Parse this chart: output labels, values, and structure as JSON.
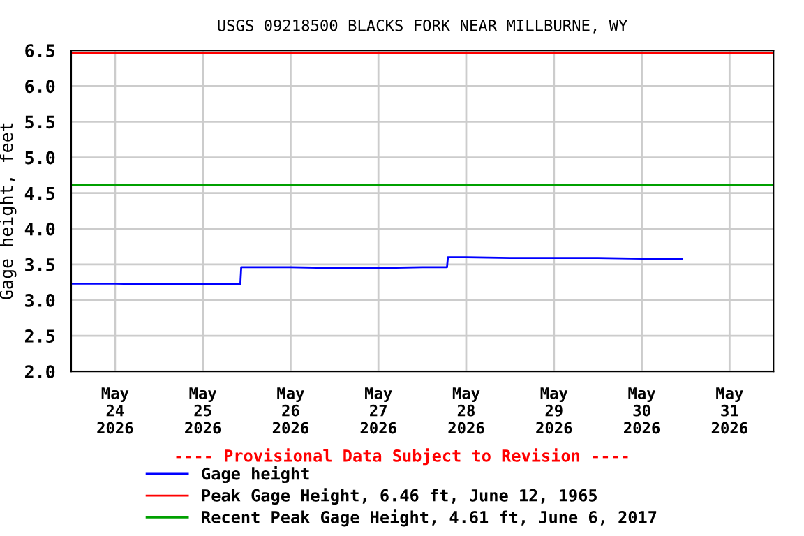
{
  "chart_data": {
    "type": "line",
    "title": "USGS 09218500 BLACKS FORK NEAR MILLBURNE, WY",
    "ylabel": "Gage height, feet",
    "series": [
      {
        "name": "Gage height",
        "color": "#0000ff",
        "x": [
          "2026-05-23T12:00",
          "2026-05-24T00:00",
          "2026-05-24T12:00",
          "2026-05-25T00:00",
          "2026-05-25T10:00",
          "2026-05-25T10:15",
          "2026-05-25T10:30",
          "2026-05-26T00:00",
          "2026-05-26T12:00",
          "2026-05-27T00:00",
          "2026-05-27T12:00",
          "2026-05-27T18:45",
          "2026-05-27T19:00",
          "2026-05-28T00:00",
          "2026-05-28T12:00",
          "2026-05-29T00:00",
          "2026-05-29T12:00",
          "2026-05-30T00:00",
          "2026-05-30T11:00"
        ],
        "values": [
          3.23,
          3.23,
          3.22,
          3.22,
          3.23,
          3.22,
          3.46,
          3.46,
          3.45,
          3.45,
          3.46,
          3.46,
          3.6,
          3.6,
          3.59,
          3.59,
          3.59,
          3.58,
          3.58
        ]
      }
    ],
    "ref_lines": [
      {
        "axis": "y",
        "value": 6.46,
        "label": "Peak Gage Height, 6.46 ft, June 12, 1965",
        "color": "#ff0000"
      },
      {
        "axis": "y",
        "value": 4.61,
        "label": "Recent Peak Gage Height, 4.61 ft, June 6, 2017",
        "color": "#00a000"
      }
    ],
    "annotations": [
      "---- Provisional Data Subject to Revision ----"
    ],
    "xlim": [
      "2026-05-23T12:00",
      "2026-05-31T12:00"
    ],
    "xticks": [
      {
        "value": "2026-05-24T00:00",
        "label": "May\n24\n2026"
      },
      {
        "value": "2026-05-25T00:00",
        "label": "May\n25\n2026"
      },
      {
        "value": "2026-05-26T00:00",
        "label": "May\n26\n2026"
      },
      {
        "value": "2026-05-27T00:00",
        "label": "May\n27\n2026"
      },
      {
        "value": "2026-05-28T00:00",
        "label": "May\n28\n2026"
      },
      {
        "value": "2026-05-29T00:00",
        "label": "May\n29\n2026"
      },
      {
        "value": "2026-05-30T00:00",
        "label": "May\n30\n2026"
      },
      {
        "value": "2026-05-31T00:00",
        "label": "May\n31\n2026"
      }
    ],
    "ylim": [
      2.0,
      6.5
    ],
    "yticks": [
      {
        "value": 2.0,
        "label": "2.0"
      },
      {
        "value": 2.5,
        "label": "2.5"
      },
      {
        "value": 3.0,
        "label": "3.0"
      },
      {
        "value": 3.5,
        "label": "3.5"
      },
      {
        "value": 4.0,
        "label": "4.0"
      },
      {
        "value": 4.5,
        "label": "4.5"
      },
      {
        "value": 5.0,
        "label": "5.0"
      },
      {
        "value": 5.5,
        "label": "5.5"
      },
      {
        "value": 6.0,
        "label": "6.0"
      },
      {
        "value": 6.5,
        "label": "6.5"
      }
    ],
    "grid": true,
    "legend": "bottom"
  }
}
